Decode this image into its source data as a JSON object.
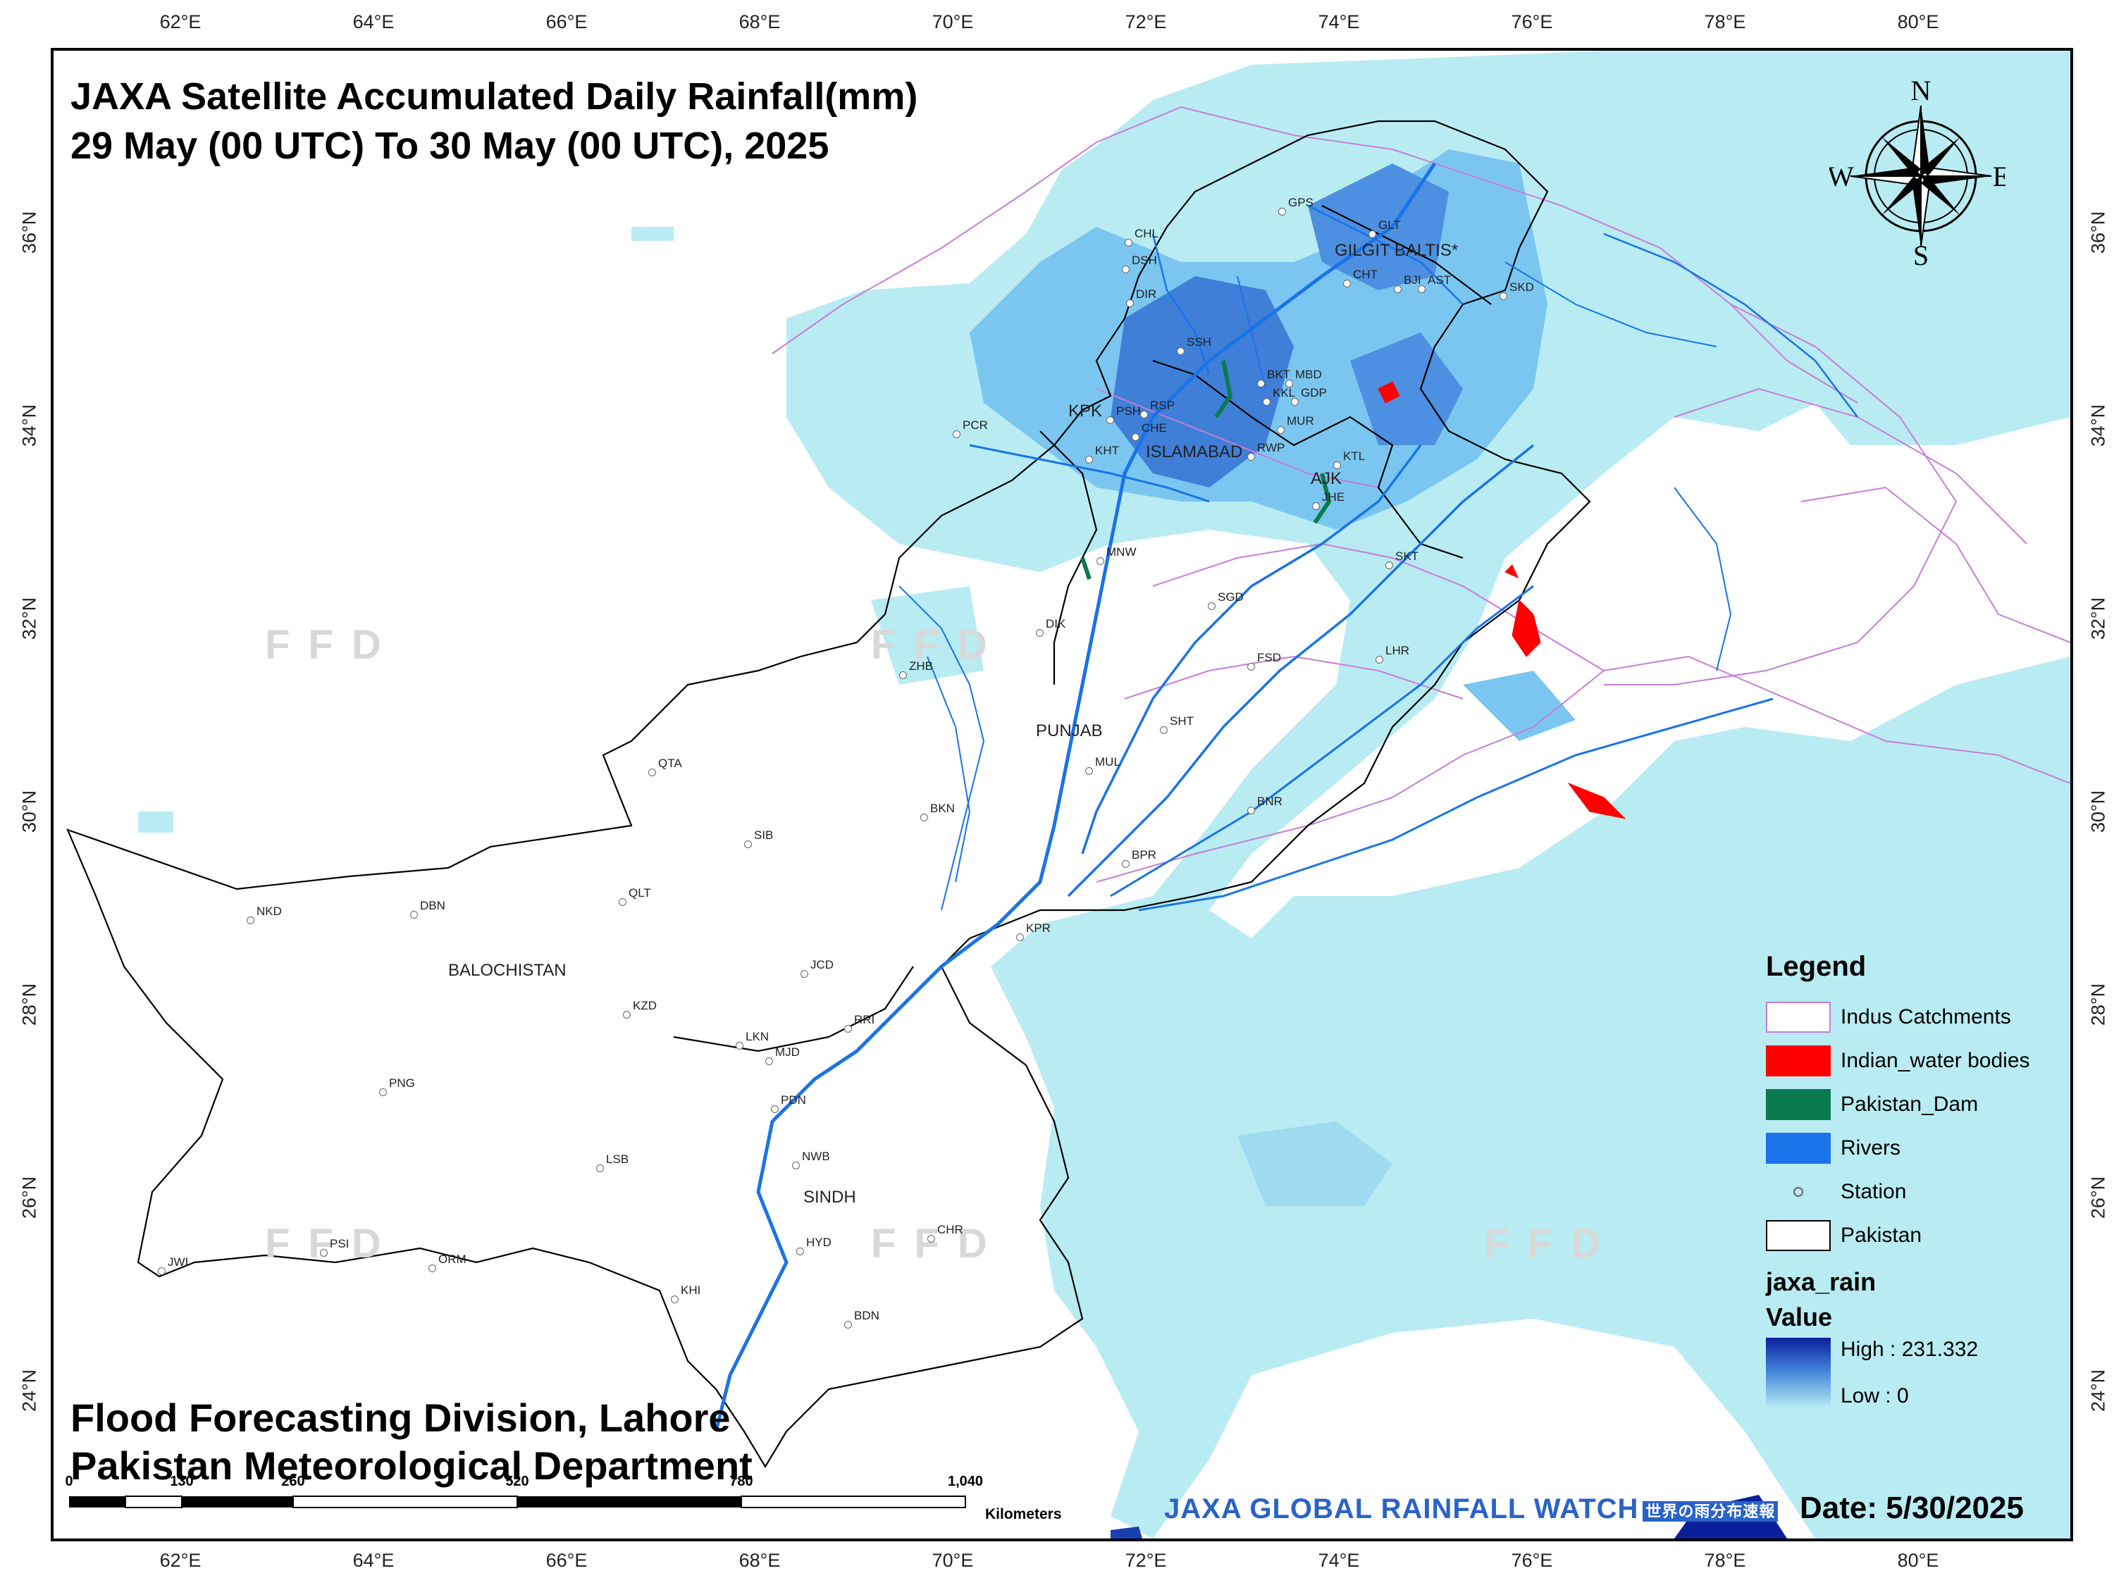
{
  "title": {
    "line1": "JAXA Satellite Accumulated Daily Rainfall(mm)",
    "line2": "29 May (00 UTC) To 30 May (00 UTC), 2025"
  },
  "footer": {
    "line1": "Flood Forecasting Division, Lahore",
    "line2": "Pakistan Meteorological Department",
    "date": "Date: 5/30/2025",
    "banner": "JAXA GLOBAL RAINFALL WATCH",
    "banner_jp": "世界の雨分布速報"
  },
  "axis": {
    "lon_labels": [
      "62°E",
      "64°E",
      "66°E",
      "68°E",
      "70°E",
      "72°E",
      "74°E",
      "76°E",
      "78°E",
      "80°E"
    ],
    "lat_labels": [
      "36°N",
      "34°N",
      "32°N",
      "30°N",
      "28°N",
      "26°N",
      "24°N"
    ]
  },
  "compass": {
    "n": "N",
    "s": "S",
    "e": "E",
    "w": "W"
  },
  "regions": [
    "GILGIT BALTIS*",
    "KPK",
    "ISLAMABAD",
    "AJK",
    "PUNJAB",
    "BALOCHISTAN",
    "SINDH"
  ],
  "stations": [
    "GPS",
    "GLT",
    "CHL",
    "DSH",
    "DIR",
    "CHT",
    "BJI",
    "AST",
    "SKD",
    "SSH",
    "BKT",
    "MBD",
    "KKL",
    "GDP",
    "PSH",
    "RSP",
    "MUR",
    "PCR",
    "CHE",
    "RWP",
    "KHT",
    "KTL",
    "JHE",
    "MNW",
    "SKT",
    "SGD",
    "DIK",
    "FSD",
    "LHR",
    "ZHB",
    "SHT",
    "QTA",
    "MUL",
    "BKN",
    "BNR",
    "SIB",
    "BPR",
    "QLT",
    "NKD",
    "DBN",
    "KPR",
    "JCD",
    "KZD",
    "RRI",
    "LKN",
    "MJD",
    "PNG",
    "PDN",
    "NWB",
    "LSB",
    "HYD",
    "CHR",
    "PSI",
    "ORM",
    "JWI",
    "KHI",
    "BDN"
  ],
  "watermark": "FFD",
  "legend": {
    "title": "Legend",
    "items": [
      {
        "label": "Indus Catchments",
        "type": "outline",
        "color": "#c77dd6"
      },
      {
        "label": "Indian_water bodies",
        "type": "fill",
        "color": "#ff0000"
      },
      {
        "label": "Pakistan_Dam",
        "type": "fill",
        "color": "#0b7a4e"
      },
      {
        "label": "Rivers",
        "type": "fill",
        "color": "#1a73e8"
      },
      {
        "label": "Station",
        "type": "point",
        "color": "#666666"
      },
      {
        "label": "Pakistan",
        "type": "outline",
        "color": "#000000"
      }
    ],
    "raster_name": "jaxa_rain",
    "value_label": "Value",
    "high": "High : 231.332",
    "low": "Low : 0"
  },
  "scalebar": {
    "ticks": [
      "0",
      "130",
      "260",
      "520",
      "780",
      "1,040"
    ],
    "unit": "Kilometers"
  },
  "colors": {
    "rain_light": "#b8ecf2",
    "rain_mid": "#7bc6f0",
    "rain_heavy": "#3f7fd8",
    "rain_max": "#0a1f9a",
    "river": "#1a73e8",
    "catchment": "#c77dd6"
  }
}
